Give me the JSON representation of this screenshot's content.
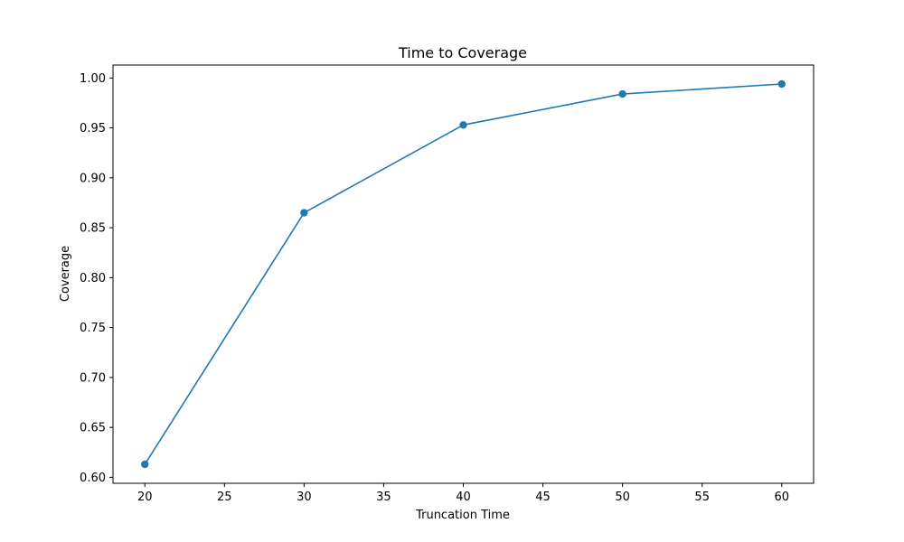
{
  "chart_data": {
    "type": "line",
    "title": "Time to Coverage",
    "xlabel": "Truncation Time",
    "ylabel": "Coverage",
    "x": [
      20,
      30,
      40,
      50,
      60
    ],
    "series": [
      {
        "values": [
          0.613,
          0.865,
          0.953,
          0.984,
          0.994
        ]
      }
    ],
    "xlim": [
      18,
      62
    ],
    "ylim": [
      0.594,
      1.013
    ],
    "xticks": [
      20,
      25,
      30,
      35,
      40,
      45,
      50,
      55,
      60
    ],
    "yticks": [
      0.6,
      0.65,
      0.7,
      0.75,
      0.8,
      0.85,
      0.9,
      0.95,
      1.0
    ],
    "xtick_labels": [
      "20",
      "25",
      "30",
      "35",
      "40",
      "45",
      "50",
      "55",
      "60"
    ],
    "ytick_labels": [
      "0.60",
      "0.65",
      "0.70",
      "0.75",
      "0.80",
      "0.85",
      "0.90",
      "0.95",
      "1.00"
    ],
    "grid": false,
    "markers": true,
    "color": "#1f77b4"
  }
}
